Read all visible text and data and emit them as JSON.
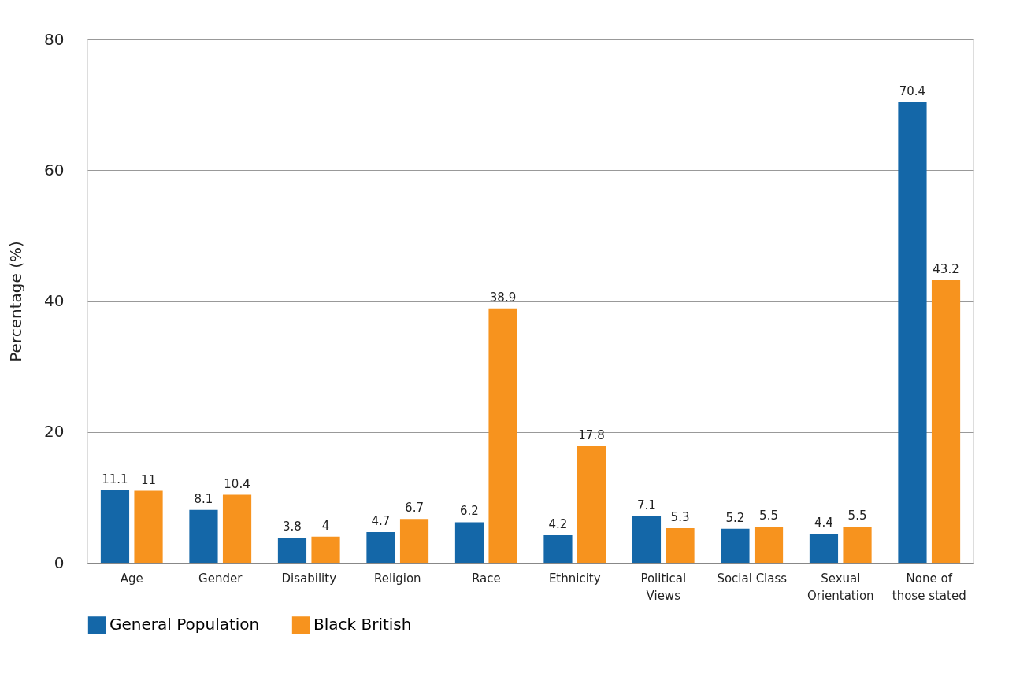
{
  "chart_data": {
    "type": "bar",
    "ylabel": "Percentage (%)",
    "categories": [
      "Age",
      "Gender",
      "Disability",
      "Religion",
      "Race",
      "Ethnicity",
      "Political Views",
      "Social Class",
      "Sexual Orientation",
      "None of those stated"
    ],
    "series": [
      {
        "name": "General Population",
        "color": "#1467a8",
        "values": [
          11.1,
          8.1,
          3.8,
          4.7,
          6.2,
          4.2,
          7.1,
          5.2,
          4.4,
          70.4
        ]
      },
      {
        "name": "Black British",
        "color": "#f7931e",
        "values": [
          11,
          10.4,
          4,
          6.7,
          38.9,
          17.8,
          5.3,
          5.5,
          5.5,
          43.2
        ]
      }
    ],
    "ylim": [
      0,
      80
    ],
    "yticks": [
      0,
      20,
      40,
      60,
      80
    ],
    "grid": "y",
    "legend": "bottom",
    "data_labels": true
  }
}
